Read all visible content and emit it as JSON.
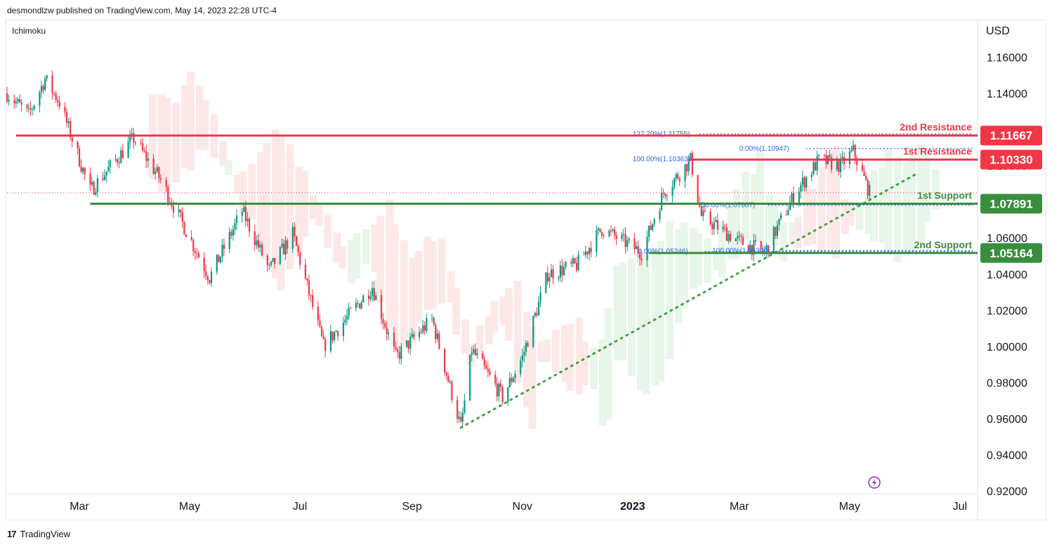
{
  "header": {
    "publisher_line": "desmondlzw published on TradingView.com, May 14, 2023 22:28 UTC-4",
    "indicator": "Ichimoku",
    "currency": "USD"
  },
  "footer": {
    "brand": "TradingView",
    "logo_glyph": "17"
  },
  "colors": {
    "up": "#089981",
    "down": "#f23645",
    "resistance": "#f23645",
    "support": "#388e3c",
    "fib": "#2962ff",
    "cloud_bull": "#e8f5e9",
    "cloud_bear": "#fde8e8",
    "trend": "#43a047"
  },
  "chart_data": {
    "type": "candlestick",
    "symbol_currency": "USD",
    "y_ticks": [
      "1.16000",
      "1.14000",
      "1.12000",
      "1.10000",
      "1.08000",
      "1.06000",
      "1.04000",
      "1.02000",
      "1.00000",
      "0.98000",
      "0.96000",
      "0.94000",
      "0.92000"
    ],
    "y_tick_values": [
      1.16,
      1.14,
      1.12,
      1.1,
      1.08,
      1.06,
      1.04,
      1.02,
      1.0,
      0.98,
      0.96,
      0.94,
      0.92
    ],
    "ylim": [
      0.92,
      1.18
    ],
    "x_ticks": [
      {
        "label": "Mar",
        "date": "2022-03-01",
        "bold": false
      },
      {
        "label": "May",
        "date": "2022-05-01",
        "bold": false
      },
      {
        "label": "Jul",
        "date": "2022-07-01",
        "bold": false
      },
      {
        "label": "Sep",
        "date": "2022-09-01",
        "bold": false
      },
      {
        "label": "Nov",
        "date": "2022-11-01",
        "bold": false
      },
      {
        "label": "2023",
        "date": "2023-01-01",
        "bold": true
      },
      {
        "label": "Mar",
        "date": "2023-03-01",
        "bold": false
      },
      {
        "label": "May",
        "date": "2023-05-01",
        "bold": false
      },
      {
        "label": "Jul",
        "date": "2023-07-01",
        "bold": false
      }
    ],
    "xlim": [
      "2022-01-20",
      "2023-07-10"
    ],
    "price_path": [
      {
        "date": "2022-01-20",
        "close": 1.14
      },
      {
        "date": "2022-02-01",
        "close": 1.128
      },
      {
        "date": "2022-02-10",
        "close": 1.148
      },
      {
        "date": "2022-02-18",
        "close": 1.135
      },
      {
        "date": "2022-03-07",
        "close": 1.086
      },
      {
        "date": "2022-03-31",
        "close": 1.115
      },
      {
        "date": "2022-04-15",
        "close": 1.092
      },
      {
        "date": "2022-05-01",
        "close": 1.06
      },
      {
        "date": "2022-05-12",
        "close": 1.038
      },
      {
        "date": "2022-05-30",
        "close": 1.075
      },
      {
        "date": "2022-06-14",
        "close": 1.042
      },
      {
        "date": "2022-06-27",
        "close": 1.062
      },
      {
        "date": "2022-07-14",
        "close": 1.0
      },
      {
        "date": "2022-08-10",
        "close": 1.033
      },
      {
        "date": "2022-08-23",
        "close": 0.994
      },
      {
        "date": "2022-09-12",
        "close": 1.015
      },
      {
        "date": "2022-09-28",
        "close": 0.955
      },
      {
        "date": "2022-10-04",
        "close": 0.998
      },
      {
        "date": "2022-10-21",
        "close": 0.972
      },
      {
        "date": "2022-11-01",
        "close": 0.994
      },
      {
        "date": "2022-11-15",
        "close": 1.04
      },
      {
        "date": "2022-12-01",
        "close": 1.045
      },
      {
        "date": "2022-12-15",
        "close": 1.065
      },
      {
        "date": "2023-01-06",
        "close": 1.052
      },
      {
        "date": "2023-01-18",
        "close": 1.085
      },
      {
        "date": "2023-02-02",
        "close": 1.103
      },
      {
        "date": "2023-02-08",
        "close": 1.072
      },
      {
        "date": "2023-03-01",
        "close": 1.058
      },
      {
        "date": "2023-03-15",
        "close": 1.052
      },
      {
        "date": "2023-04-01",
        "close": 1.085
      },
      {
        "date": "2023-04-14",
        "close": 1.103
      },
      {
        "date": "2023-04-26",
        "close": 1.1
      },
      {
        "date": "2023-05-03",
        "close": 1.108
      },
      {
        "date": "2023-05-12",
        "close": 1.085
      }
    ],
    "horizontal_levels": [
      {
        "name": "2nd Resistance",
        "value": 1.11667,
        "tag": "1.11667",
        "color": "#f23645",
        "start": "2022-01-25"
      },
      {
        "name": "1st Resistance",
        "value": 1.1033,
        "tag": "1.10330",
        "color": "#f23645",
        "start": "2023-02-01"
      },
      {
        "name": "1st Support",
        "value": 1.07891,
        "tag": "1.07891",
        "color": "#388e3c",
        "start": "2022-03-07"
      },
      {
        "name": "2nd Support",
        "value": 1.05164,
        "tag": "1.05164",
        "color": "#388e3c",
        "start": "2023-01-10"
      }
    ],
    "fib_labels": [
      {
        "text": "127.20%(1.11755)",
        "value": 1.11755,
        "date": "2023-01-01"
      },
      {
        "text": "100.00%(1.10363)",
        "value": 1.10363,
        "date": "2023-01-01"
      },
      {
        "text": "0.00%(1.10947)",
        "value": 1.10947,
        "date": "2023-03-01"
      },
      {
        "text": "50.00%(1.07807)",
        "value": 1.07807,
        "date": "2023-02-08"
      },
      {
        "text": "0.00%(1.05246)",
        "value": 1.05246,
        "date": "2023-01-04"
      },
      {
        "text": "100.00%(1.05300)",
        "value": 1.053,
        "date": "2023-02-14"
      }
    ],
    "trendline": {
      "from": {
        "date": "2022-09-28",
        "value": 0.955
      },
      "to": {
        "date": "2023-06-08",
        "value": 1.096
      }
    },
    "current_price": 1.085
  }
}
